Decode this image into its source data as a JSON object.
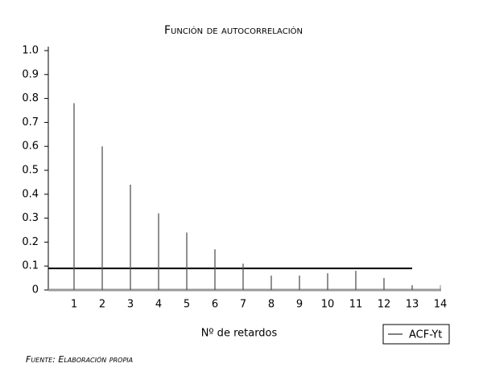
{
  "chart_data": {
    "type": "stem",
    "title": "Función de autocorrelación",
    "x_label": "Nº de retardos",
    "source": "Fuente: Elaboración propia",
    "x": [
      1,
      2,
      3,
      4,
      5,
      6,
      7,
      8,
      9,
      10,
      11,
      12,
      13
    ],
    "series": [
      {
        "name": "ACF-Yt",
        "color": "#555555",
        "values": [
          0.78,
          0.6,
          0.44,
          0.32,
          0.24,
          0.17,
          0.11,
          0.06,
          0.06,
          0.07,
          0.08,
          0.05,
          0.02
        ]
      }
    ],
    "reference_line": 0.09,
    "xlim": [
      0,
      14
    ],
    "xticks": [
      1,
      2,
      3,
      4,
      5,
      6,
      7,
      8,
      9,
      10,
      11,
      12,
      13,
      14
    ],
    "ylim": [
      0,
      1
    ],
    "yticks": [
      0,
      0.1,
      0.2,
      0.3,
      0.4,
      0.5,
      0.6,
      0.7,
      0.8,
      0.9,
      {
        "value": 1,
        "label": "1.0"
      }
    ],
    "legend": "bottom-right"
  }
}
